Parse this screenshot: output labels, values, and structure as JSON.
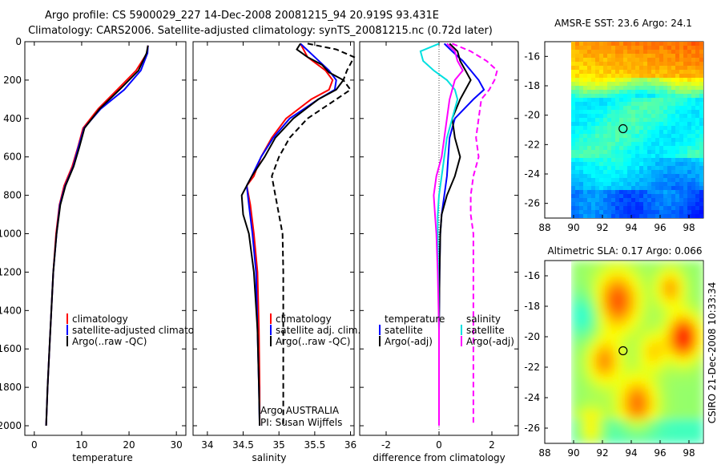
{
  "title": {
    "line1": "Argo profile: CS 5900029_227 14-Dec-2008 20081215_94 20.919S 93.431E",
    "line2": "Climatology: CARS2006. Satellite-adjusted climatology: synTS_20081215.nc (0.72d later)"
  },
  "side_label": "CSIRO 21-Dec-2008 10:33:34",
  "chart_data": [
    {
      "type": "line",
      "panel": "temperature",
      "xlabel": "temperature",
      "xlim": [
        -2,
        32
      ],
      "ylim": [
        0,
        2050
      ],
      "y_reversed": true,
      "xticks": [
        "0",
        "10",
        "20",
        "30"
      ],
      "yticks": [
        "0",
        "200",
        "400",
        "600",
        "800",
        "1000",
        "1200",
        "1400",
        "1600",
        "1800",
        "2000"
      ],
      "legend": [
        "climatology",
        "satellite-adjusted climatology",
        "Argo(..raw -QC)"
      ],
      "series": [
        {
          "name": "climatology",
          "color": "#ff0000",
          "dash": "solid",
          "depth": [
            20,
            60,
            150,
            250,
            350,
            450,
            550,
            650,
            750,
            850,
            1000,
            1200,
            1400,
            1600,
            1800,
            2000
          ],
          "values": [
            24.0,
            23.8,
            21.5,
            17.5,
            13.5,
            10.3,
            9.2,
            8.0,
            6.3,
            5.3,
            4.6,
            4.0,
            3.6,
            3.2,
            2.8,
            2.5
          ]
        },
        {
          "name": "satellite-adjusted climatology",
          "color": "#0000ff",
          "dash": "solid",
          "depth": [
            20,
            60,
            150,
            250,
            350,
            450,
            550,
            650,
            750,
            850,
            1000,
            1200,
            1400,
            1600,
            1800,
            2000
          ],
          "values": [
            24.0,
            23.9,
            22.5,
            19.0,
            14.0,
            10.5,
            9.3,
            8.2,
            6.5,
            5.4,
            4.7,
            4.0,
            3.6,
            3.2,
            2.8,
            2.5
          ]
        },
        {
          "name": "Argo(..raw -QC)",
          "color": "#000000",
          "dash": "solid",
          "depth": [
            20,
            60,
            150,
            250,
            350,
            450,
            550,
            650,
            750,
            850,
            1000,
            1200,
            1400,
            1600,
            1800,
            2000
          ],
          "values": [
            24.0,
            23.7,
            22.0,
            18.0,
            13.8,
            10.6,
            9.5,
            8.3,
            6.6,
            5.5,
            4.7,
            4.0,
            3.6,
            3.2,
            2.8,
            2.5
          ]
        }
      ]
    },
    {
      "type": "line",
      "panel": "salinity",
      "xlabel": "salinity",
      "xlim": [
        33.8,
        36.05
      ],
      "ylim": [
        0,
        2050
      ],
      "y_reversed": true,
      "xticks": [
        "34",
        "34.5",
        "35",
        "35.5",
        "36"
      ],
      "legend": [
        "climatology",
        "satellite adj. clim.",
        "Argo(..raw -QC)"
      ],
      "annotation": [
        "Argo AUSTRALIA",
        "PI: Susan Wijffels"
      ],
      "series": [
        {
          "name": "climatology",
          "color": "#ff0000",
          "dash": "solid",
          "depth": [
            10,
            80,
            150,
            200,
            250,
            300,
            400,
            500,
            600,
            700,
            750,
            850,
            1000,
            1200,
            1500,
            1800,
            2000
          ],
          "values": [
            35.3,
            35.4,
            35.65,
            35.75,
            35.7,
            35.45,
            35.1,
            34.9,
            34.75,
            34.65,
            34.55,
            34.6,
            34.65,
            34.7,
            34.72,
            34.73,
            34.73
          ]
        },
        {
          "name": "satellite adj. clim.",
          "color": "#0000ff",
          "dash": "solid",
          "depth": [
            10,
            80,
            150,
            200,
            250,
            300,
            400,
            500,
            600,
            700,
            750,
            850,
            1000,
            1200,
            1500,
            1800,
            2000
          ],
          "values": [
            35.3,
            35.5,
            35.7,
            35.8,
            35.78,
            35.55,
            35.15,
            34.92,
            34.75,
            34.62,
            34.55,
            34.58,
            34.63,
            34.68,
            34.7,
            34.72,
            34.73
          ]
        },
        {
          "name": "Argo(-adj)",
          "color": "#000000",
          "dash": "solid",
          "depth": [
            10,
            40,
            80,
            120,
            160,
            200,
            250,
            300,
            400,
            500,
            600,
            700,
            800,
            900,
            1000,
            1200,
            1500,
            1800,
            2000
          ],
          "values": [
            35.3,
            35.25,
            35.4,
            35.6,
            35.7,
            35.9,
            35.8,
            35.55,
            35.2,
            34.95,
            34.8,
            34.62,
            34.48,
            34.5,
            34.58,
            34.65,
            34.7,
            34.72,
            34.73
          ]
        },
        {
          "name": "Argo(..raw -QC)",
          "color": "#000000",
          "dash": "dash",
          "depth": [
            10,
            40,
            80,
            150,
            200,
            250,
            300,
            400,
            500,
            600,
            700,
            800,
            900,
            1000,
            1200,
            1500,
            1800,
            2000
          ],
          "values": [
            35.4,
            35.8,
            36.05,
            35.95,
            35.9,
            36.0,
            35.8,
            35.4,
            35.15,
            35.0,
            34.9,
            34.95,
            35.0,
            35.05,
            35.06,
            35.06,
            35.06,
            35.06
          ]
        }
      ]
    },
    {
      "type": "line",
      "panel": "difference",
      "xlabel": "difference from climatology",
      "xlim": [
        -3,
        3
      ],
      "ylim": [
        0,
        2050
      ],
      "y_reversed": true,
      "xticks": [
        "-2",
        "0",
        "2"
      ],
      "legend_titles": [
        "temperature",
        "salinity"
      ],
      "legend": [
        "satellite",
        "Argo(-adj)",
        "satellite",
        "Argo(-adj)"
      ],
      "series": [
        {
          "name": "temperature satellite",
          "color": "#0000ff",
          "dash": "solid",
          "depth": [
            10,
            50,
            100,
            150,
            200,
            250,
            300,
            400,
            500,
            600,
            700,
            800,
            900,
            1000,
            1200,
            1500,
            2000
          ],
          "values": [
            0.2,
            0.5,
            0.9,
            1.2,
            1.5,
            1.7,
            1.3,
            0.6,
            0.4,
            0.35,
            0.3,
            0.2,
            0.1,
            0.05,
            0.02,
            0.0,
            0.0
          ]
        },
        {
          "name": "temperature Argo(-adj)",
          "color": "#000000",
          "dash": "solid",
          "depth": [
            10,
            50,
            100,
            150,
            200,
            250,
            300,
            400,
            500,
            600,
            700,
            800,
            900,
            1000,
            1200,
            1500,
            2000
          ],
          "values": [
            0.4,
            0.7,
            0.8,
            1.0,
            1.2,
            1.0,
            0.8,
            0.5,
            0.6,
            0.8,
            0.6,
            0.3,
            0.1,
            0.05,
            0.02,
            0.0,
            0.0
          ]
        },
        {
          "name": "salinity satellite",
          "color": "#00e0e0",
          "dash": "solid",
          "depth": [
            10,
            50,
            100,
            150,
            200,
            250,
            300,
            400,
            500,
            600,
            700,
            800,
            900,
            1000,
            1200,
            1500,
            2000
          ],
          "values": [
            0.0,
            -0.7,
            -0.6,
            -0.2,
            0.3,
            0.6,
            0.7,
            0.5,
            0.3,
            0.2,
            0.1,
            0.0,
            -0.05,
            -0.05,
            -0.03,
            0.0,
            0.0
          ]
        },
        {
          "name": "salinity Argo(-adj)",
          "color": "#ff00ff",
          "dash": "solid",
          "depth": [
            10,
            50,
            100,
            150,
            200,
            250,
            300,
            400,
            500,
            600,
            700,
            800,
            900,
            1000,
            1200,
            1500,
            2000
          ],
          "values": [
            0.3,
            0.6,
            0.7,
            0.9,
            0.6,
            0.5,
            0.4,
            0.3,
            0.2,
            0.1,
            -0.1,
            -0.2,
            -0.15,
            -0.1,
            -0.05,
            0.0,
            0.0
          ]
        },
        {
          "name": "salinity Argo(..raw -QC)",
          "color": "#ff00ff",
          "dash": "dash",
          "depth": [
            10,
            50,
            100,
            150,
            200,
            250,
            300,
            400,
            500,
            600,
            700,
            800,
            900,
            1000,
            1200,
            1500,
            2000
          ],
          "values": [
            0.5,
            1.2,
            1.8,
            2.2,
            2.1,
            1.9,
            1.6,
            1.5,
            1.4,
            1.5,
            1.3,
            1.2,
            1.2,
            1.3,
            1.3,
            1.3,
            1.3
          ]
        }
      ]
    },
    {
      "type": "heatmap",
      "panel": "sst-map",
      "title": "AMSR-E SST: 23.6 Argo: 24.1",
      "xlim": [
        88,
        99
      ],
      "ylim": [
        -27,
        -15
      ],
      "xticks": [
        "88",
        "90",
        "92",
        "94",
        "96",
        "98"
      ],
      "yticks": [
        "-16",
        "-18",
        "-20",
        "-22",
        "-24",
        "-26"
      ],
      "marker": {
        "lon": 93.43,
        "lat": -20.92
      }
    },
    {
      "type": "heatmap",
      "panel": "sla-map",
      "title": "Altimetric SLA: 0.17 Argo: 0.066",
      "xlim": [
        88,
        99
      ],
      "ylim": [
        -27,
        -15
      ],
      "xticks": [
        "88",
        "90",
        "92",
        "94",
        "96",
        "98"
      ],
      "yticks": [
        "-16",
        "-18",
        "-20",
        "-22",
        "-24",
        "-26"
      ],
      "marker": {
        "lon": 93.43,
        "lat": -20.92
      }
    }
  ]
}
